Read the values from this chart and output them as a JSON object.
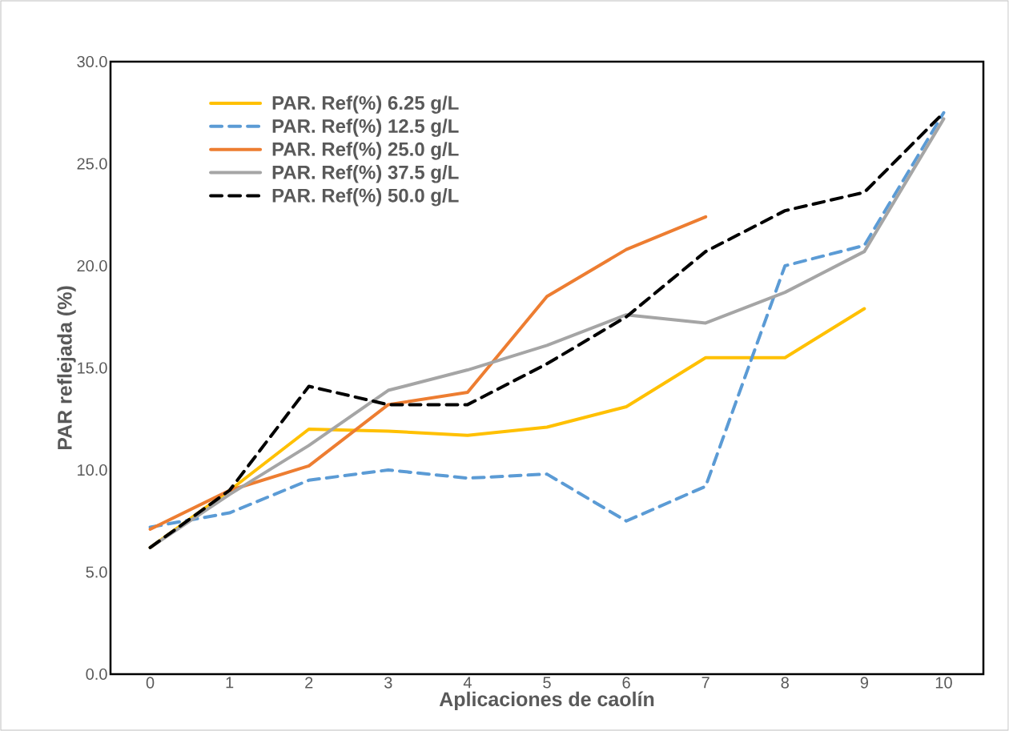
{
  "chart_data": {
    "type": "line",
    "xlabel": "Aplicaciones de caolín",
    "ylabel": "PAR reflejada (%)",
    "categories": [
      "0",
      "1",
      "2",
      "3",
      "4",
      "5",
      "6",
      "7",
      "8",
      "9",
      "10"
    ],
    "ylim": [
      0,
      30
    ],
    "yticks": [
      {
        "value": 0,
        "label": "0.0"
      },
      {
        "value": 5,
        "label": "5.0"
      },
      {
        "value": 10,
        "label": "10.0"
      },
      {
        "value": 15,
        "label": "15.0"
      },
      {
        "value": 20,
        "label": "20.0"
      },
      {
        "value": 25,
        "label": "25.0"
      },
      {
        "value": 30,
        "label": "30.0"
      }
    ],
    "grid": false,
    "legend": "top left",
    "marker": "none",
    "series": [
      {
        "name": "PAR. Ref(%) 6.25 g/L",
        "color": "#ffc000",
        "line_style": "solid",
        "values": [
          6.2,
          9.0,
          12.0,
          11.9,
          11.7,
          12.1,
          13.1,
          15.5,
          15.5,
          17.9,
          null
        ]
      },
      {
        "name": "PAR. Ref(%) 12.5 g/L",
        "color": "#5b9bd5",
        "line_style": "dashed",
        "values": [
          7.2,
          7.9,
          9.5,
          10.0,
          9.6,
          9.8,
          7.5,
          9.2,
          20.0,
          21.0,
          27.5
        ]
      },
      {
        "name": "PAR. Ref(%) 25.0 g/L",
        "color": "#ed7d31",
        "line_style": "solid",
        "values": [
          7.1,
          9.0,
          10.2,
          13.2,
          13.8,
          18.5,
          20.8,
          22.4,
          null,
          null,
          null
        ]
      },
      {
        "name": "PAR. Ref(%) 37.5 g/L",
        "color": "#a5a5a5",
        "line_style": "solid",
        "values": [
          6.2,
          8.8,
          11.2,
          13.9,
          14.9,
          16.1,
          17.6,
          17.2,
          18.7,
          20.7,
          27.2
        ]
      },
      {
        "name": "PAR. Ref(%) 50.0 g/L",
        "color": "#000000",
        "line_style": "dashed",
        "values": [
          6.2,
          9.0,
          14.1,
          13.2,
          13.2,
          15.2,
          17.5,
          20.7,
          22.7,
          23.6,
          27.5
        ]
      }
    ]
  }
}
